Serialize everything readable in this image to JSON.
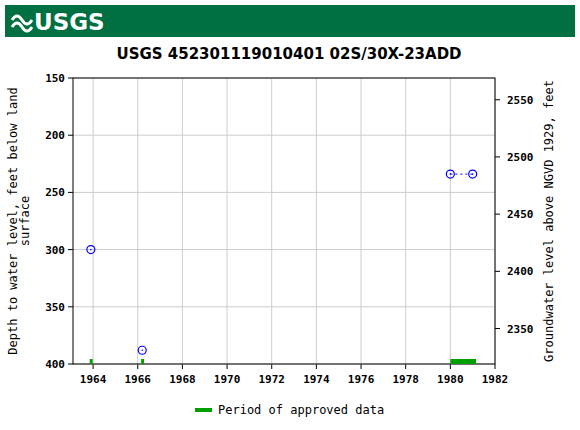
{
  "chart_data": {
    "type": "scatter",
    "logo": "USGS",
    "title": "USGS 452301119010401 02S/30X-23ADD",
    "ylabel": "Depth to water level, feet below land surface",
    "y2label": "Groundwater level above NGVD 1929, feet",
    "xlim": [
      1963.1,
      1982
    ],
    "xticks": [
      1964,
      1966,
      1968,
      1970,
      1972,
      1974,
      1976,
      1978,
      1980,
      1982
    ],
    "ylim": [
      400,
      150
    ],
    "yticks": [
      150,
      200,
      250,
      300,
      350,
      400
    ],
    "y2lim": [
      2319,
      2569
    ],
    "y2ticks": [
      2350,
      2400,
      2450,
      2500,
      2550
    ],
    "grid": true,
    "legend": "bottom",
    "series": [
      {
        "type": "scatter",
        "color": "#0000ff",
        "marker": "circle",
        "x": [
          1963.9,
          1966.2
        ],
        "values": [
          300,
          388
        ]
      },
      {
        "type": "line",
        "color": "#0000ff",
        "marker": "circle",
        "line_style": "dotted",
        "x": [
          1980.0,
          1981.0
        ],
        "values": [
          234,
          234
        ]
      }
    ],
    "approved_periods": {
      "name": "Period of approved data",
      "color": "#00a000",
      "start": [
        1963.85,
        1966.15,
        1980.0
      ],
      "end": [
        1963.98,
        1966.28,
        1981.15
      ]
    }
  }
}
